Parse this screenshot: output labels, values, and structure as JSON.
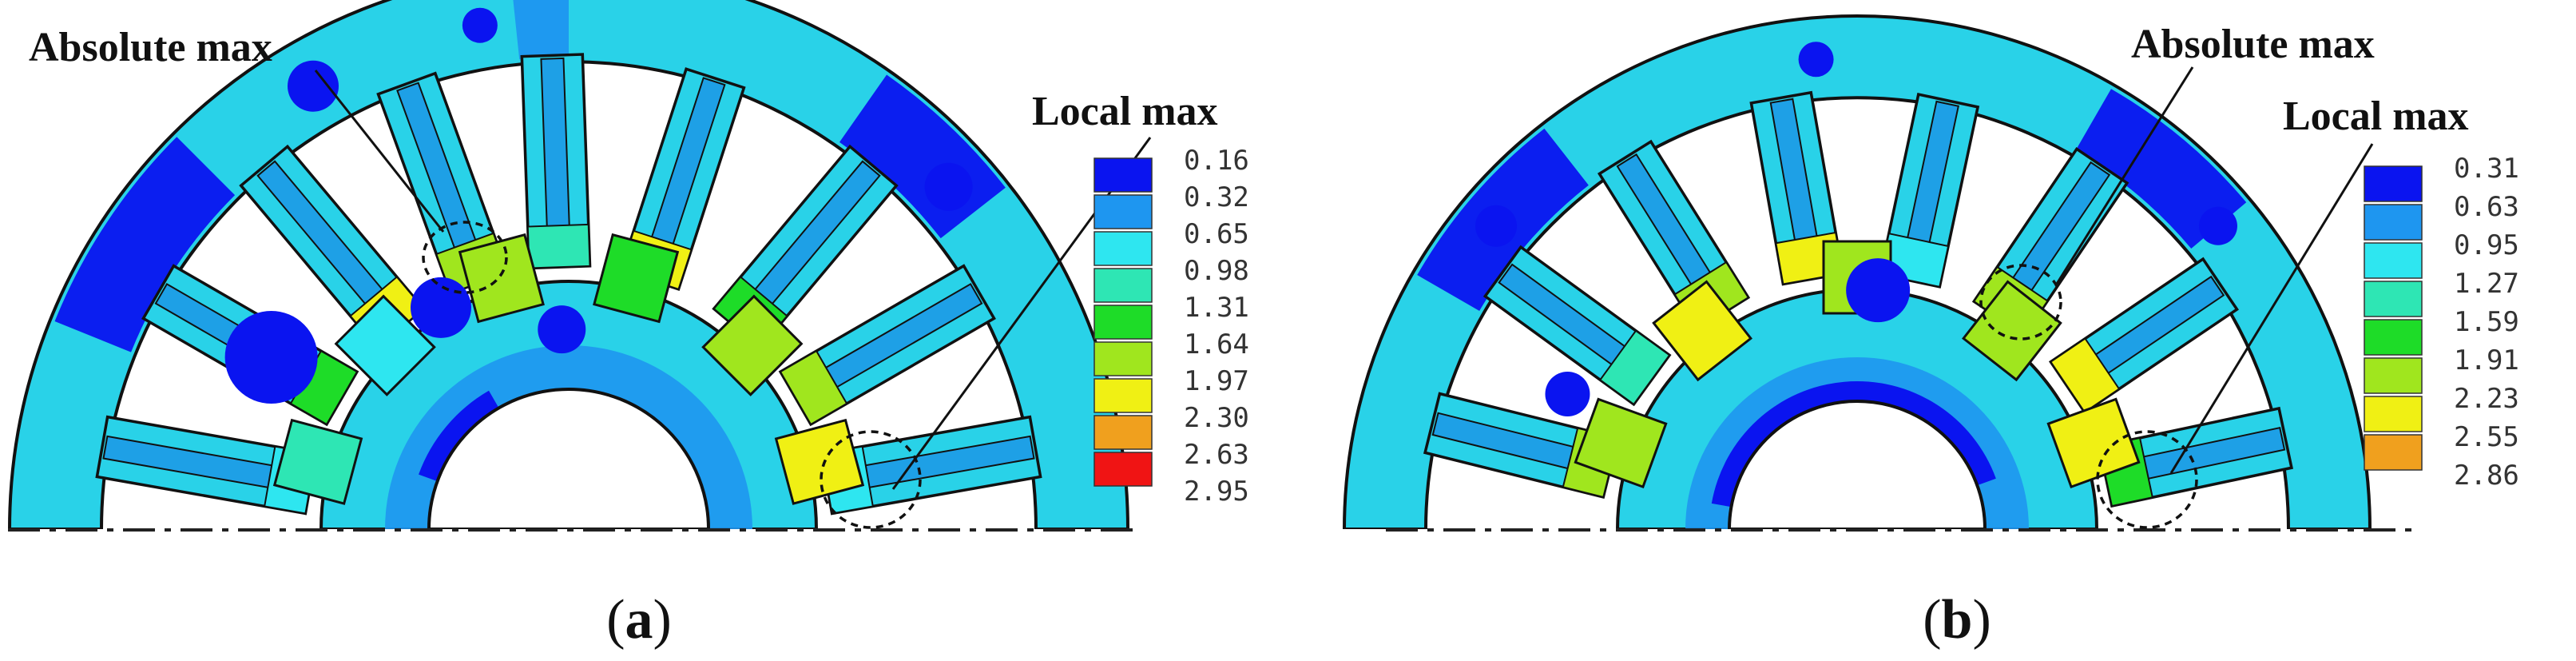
{
  "colors": {
    "scale": [
      "#0a14f0",
      "#1e96f0",
      "#2ee6f0",
      "#2ee6b4",
      "#1edc28",
      "#a0e61e",
      "#f0f014",
      "#f0a01e",
      "#f01414"
    ],
    "base_field": "#29d2e8",
    "slot_face": "#1ea0e6",
    "outline": "#111111"
  },
  "panels": [
    {
      "id": "a",
      "caption": "a",
      "labels": {
        "absolute_max": "Absolute max",
        "local_max": "Local max"
      },
      "legend_values": [
        "0.16",
        "0.32",
        "0.65",
        "0.98",
        "1.31",
        "1.64",
        "1.97",
        "2.30",
        "2.63",
        "2.95"
      ]
    },
    {
      "id": "b",
      "caption": "b",
      "labels": {
        "absolute_max": "Absolute max",
        "local_max": "Local max"
      },
      "legend_values": [
        "0.31",
        "0.63",
        "0.95",
        "1.27",
        "1.59",
        "1.91",
        "2.23",
        "2.55",
        "2.86"
      ]
    }
  ]
}
